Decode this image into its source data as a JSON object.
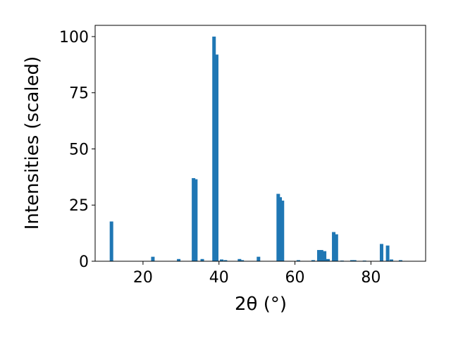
{
  "chart_data": {
    "type": "bar",
    "xlabel": "2θ (°)",
    "ylabel": "Intensities (scaled)",
    "color": "#1f77b4",
    "x": [
      11.7,
      22.6,
      29.4,
      33.3,
      33.9,
      35.6,
      38.7,
      39.4,
      40.7,
      41.7,
      45.4,
      46.1,
      50.4,
      55.6,
      56.1,
      56.7,
      60.9,
      64.8,
      66.3,
      67.0,
      67.8,
      68.7,
      70.2,
      70.9,
      72.4,
      75.0,
      75.7,
      78.3,
      82.8,
      84.4,
      85.4,
      87.8
    ],
    "values": [
      17.7,
      2,
      1,
      37,
      36.5,
      1,
      100,
      92,
      0.8,
      0.5,
      1,
      0.5,
      2,
      30,
      28.5,
      27,
      0.5,
      0.5,
      5,
      5,
      4.5,
      1,
      13,
      12,
      0.3,
      0.5,
      0.5,
      0.3,
      7.7,
      7,
      0.8,
      0.5
    ],
    "xlim": [
      7.4,
      94.4
    ],
    "ylim": [
      0,
      105
    ],
    "xticks": [
      20,
      40,
      60,
      80
    ],
    "yticks": [
      0,
      25,
      50,
      75,
      100
    ]
  }
}
